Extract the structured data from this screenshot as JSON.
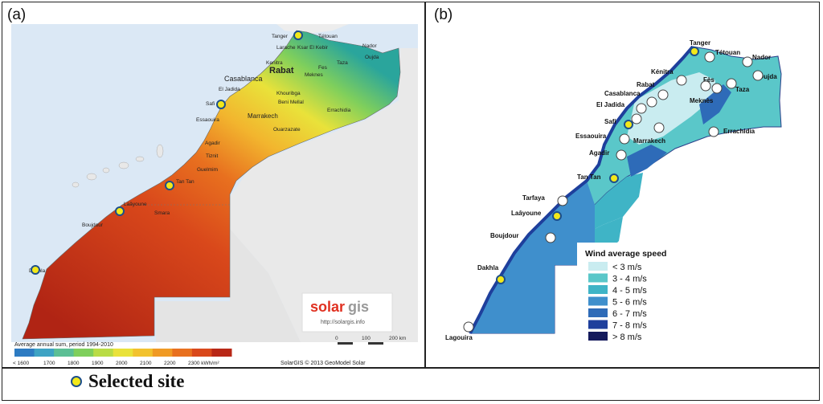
{
  "panels": {
    "a_label": "(a)",
    "b_label": "(b)"
  },
  "map_a": {
    "cities": [
      "Tanger",
      "Tétouan",
      "Nador",
      "Oujda",
      "Larache",
      "Ksar El Kebir",
      "Taza",
      "Kenitra",
      "Rabat",
      "Fes",
      "Meknes",
      "Casablanca",
      "Khouribga",
      "El Jadida",
      "Safi",
      "Beni Mellal",
      "Essaouira",
      "Marrakech",
      "Ouarzazate",
      "Errachidia",
      "Agadir",
      "Tiznit",
      "Guelmim",
      "Tan Tan",
      "Laâyoune",
      "Smara",
      "Boujdour",
      "Dakhla"
    ],
    "logo_solar": "solar",
    "logo_gis": "gis",
    "logo_url": "http://solargis.info",
    "scale_labels": [
      "0",
      "100",
      "200 km"
    ],
    "colorbar_title": "Average annual sum, period 1994-2010",
    "colorbar_ticks": [
      "< 1600",
      "1700",
      "1800",
      "1900",
      "2000",
      "2100",
      "2200",
      "2300 kWh/m²"
    ],
    "colorbar_colors": [
      "#2d7bc2",
      "#3ea3c4",
      "#5cbf95",
      "#7fcf5c",
      "#b9dc45",
      "#e9e23a",
      "#f2c22e",
      "#f09a24",
      "#e8701f",
      "#d9481b",
      "#b82817"
    ],
    "credit": "SolarGIS © 2013 GeoModel Solar"
  },
  "map_b": {
    "cities": [
      "Tanger",
      "Tétouan",
      "Nador",
      "Oujda",
      "Kénitra",
      "Rabat",
      "Casablanca",
      "Fès",
      "Taza",
      "Meknès",
      "El Jadida",
      "Safi",
      "Essaouira",
      "Marrakech",
      "Errachidia",
      "Agadir",
      "Tan Tan",
      "Tarfaya",
      "Laâyoune",
      "Boujdour",
      "Dakhla",
      "Lagouira"
    ],
    "legend_title": "Wind average speed",
    "legend_items": [
      {
        "label": "< 3 m/s",
        "color": "#c9ecf0"
      },
      {
        "label": "3 - 4 m/s",
        "color": "#5ac7c9"
      },
      {
        "label": "4 - 5 m/s",
        "color": "#3fb4c6"
      },
      {
        "label": "5 - 6 m/s",
        "color": "#3f8fcc"
      },
      {
        "label": "6 - 7 m/s",
        "color": "#2e6bb8"
      },
      {
        "label": "7 - 8 m/s",
        "color": "#1e3f9c"
      },
      {
        "label": "> 8 m/s",
        "color": "#141a5c"
      }
    ]
  },
  "legend": {
    "selected_site": "Selected  site"
  }
}
